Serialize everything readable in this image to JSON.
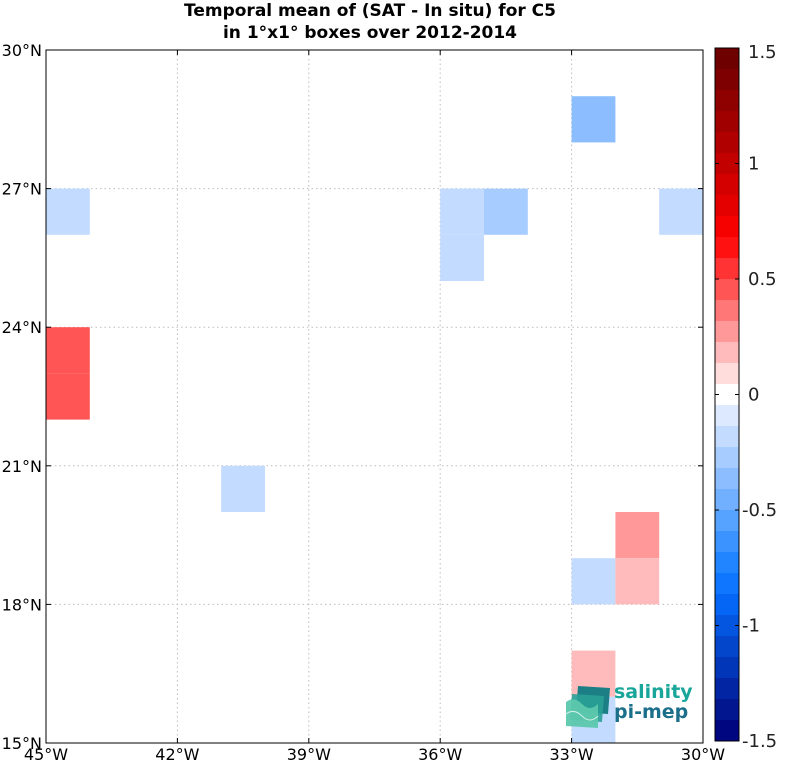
{
  "title": {
    "line1": "Temporal mean of (SAT - In situ) for C5",
    "line2": "in 1°x1° boxes over 2012-2014"
  },
  "logo": {
    "line1": "salinity",
    "line2": "pi-mep"
  },
  "chart_data": {
    "type": "heatmap",
    "title": "Temporal mean of (SAT - In situ) for C5 in 1°x1° boxes over 2012-2014",
    "xlabel": "",
    "ylabel": "",
    "xlim": [
      -45,
      -30
    ],
    "ylim": [
      15,
      30
    ],
    "grid": true,
    "x_ticks": [
      -45,
      -42,
      -39,
      -36,
      -33,
      -30
    ],
    "x_tick_labels": [
      "45°W",
      "42°W",
      "39°W",
      "36°W",
      "33°W",
      "30°W"
    ],
    "y_ticks": [
      15,
      18,
      21,
      24,
      27,
      30
    ],
    "y_tick_labels": [
      "15°N",
      "18°N",
      "21°N",
      "24°N",
      "27°N",
      "30°N"
    ],
    "colorbar": {
      "range": [
        -1.5,
        1.5
      ],
      "ticks": [
        1.5,
        1,
        0.5,
        0,
        -0.5,
        -1,
        -1.5
      ],
      "tick_labels": [
        "1.5",
        "1",
        "0.5",
        "0",
        "-0.5",
        "-1",
        "-1.5"
      ],
      "colors_top_to_bottom": [
        "#6e0000",
        "#7e0000",
        "#8f0000",
        "#a00000",
        "#b10000",
        "#c30000",
        "#d40000",
        "#e50000",
        "#f70000",
        "#ff1111",
        "#ff3333",
        "#ff5555",
        "#ff7777",
        "#ff9999",
        "#ffbbbb",
        "#ffdddd",
        "#ffffff",
        "#dde9ff",
        "#c2dbff",
        "#a7ccff",
        "#8cbeff",
        "#71b0ff",
        "#56a2ff",
        "#3b93ff",
        "#2085ff",
        "#0f77ff",
        "#0566f5",
        "#0456e0",
        "#0346cc",
        "#0236b8",
        "#0226a3",
        "#01168f",
        "#000680"
      ]
    },
    "cells": [
      {
        "lon": -33,
        "lat": 28,
        "value": -0.35
      },
      {
        "lon": -45,
        "lat": 26,
        "value": -0.15
      },
      {
        "lon": -36,
        "lat": 26,
        "value": -0.15
      },
      {
        "lon": -36,
        "lat": 25,
        "value": -0.15
      },
      {
        "lon": -35,
        "lat": 26,
        "value": -0.25
      },
      {
        "lon": -31,
        "lat": 26,
        "value": -0.15
      },
      {
        "lon": -45,
        "lat": 23,
        "value": 0.45
      },
      {
        "lon": -45,
        "lat": 22,
        "value": 0.45
      },
      {
        "lon": -41,
        "lat": 20,
        "value": -0.15
      },
      {
        "lon": -32,
        "lat": 19,
        "value": 0.3
      },
      {
        "lon": -33,
        "lat": 18,
        "value": -0.15
      },
      {
        "lon": -32,
        "lat": 18,
        "value": 0.15
      },
      {
        "lon": -33,
        "lat": 16,
        "value": 0.15
      },
      {
        "lon": -33,
        "lat": 15,
        "value": -0.15
      }
    ]
  }
}
